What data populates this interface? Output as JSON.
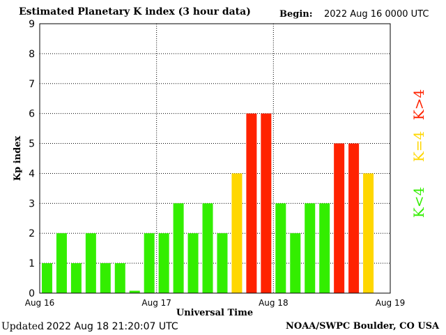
{
  "header": {
    "title": "Estimated Planetary K index (3 hour data)",
    "begin_label": "Begin:",
    "begin_value": "2022 Aug 16 0000 UTC"
  },
  "footer": {
    "updated_label": "Updated",
    "updated_value": "2022 Aug 18 21:20:07 UTC",
    "source": "NOAA/SWPC Boulder, CO USA"
  },
  "legend": [
    {
      "label": "K<4",
      "color": "#33ee00"
    },
    {
      "label": "K=4",
      "color": "#ffd700"
    },
    {
      "label": "K>4",
      "color": "#ff2200"
    }
  ],
  "chart_data": {
    "type": "bar",
    "ylabel": "Kp index",
    "xlabel": "Universal Time",
    "ylim": [
      0,
      9
    ],
    "yticks": [
      "0",
      "1",
      "2",
      "3",
      "4",
      "5",
      "6",
      "7",
      "8",
      "9"
    ],
    "xticks": [
      "Aug 16",
      "Aug 17",
      "Aug 18",
      "Aug 19"
    ],
    "grid": "dotted",
    "interval_hours": 3,
    "values": [
      1.0,
      2.0,
      1.0,
      2.0,
      1.0,
      1.0,
      0.0,
      2.0,
      2.0,
      3.0,
      2.0,
      3.0,
      2.0,
      4.0,
      6.0,
      6.0,
      3.0,
      2.0,
      3.0,
      3.0,
      5.0,
      5.0,
      4.0
    ],
    "colors": {
      "below": "#33ee00",
      "equal": "#ffd700",
      "above": "#ff2200"
    }
  }
}
